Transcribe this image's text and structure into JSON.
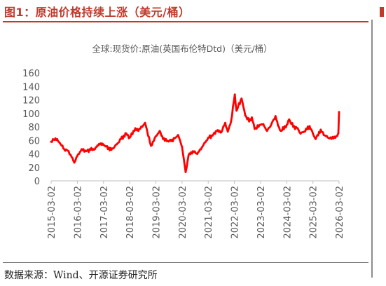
{
  "figure_title": "图1：原油价格持续上涨（美元/桶）",
  "source_note": "数据来源：Wind、开源证券研究所",
  "chart_data": {
    "type": "line",
    "title": "全球:现货价:原油(英国布伦特Dtd)（美元/桶）",
    "xlabel": "",
    "ylabel": "",
    "ylim": [
      0,
      160
    ],
    "yticks": [
      "0",
      "20",
      "40",
      "60",
      "80",
      "100",
      "120",
      "140",
      "160"
    ],
    "xticks": [
      "2015-03-02",
      "2016-03-02",
      "2017-03-02",
      "2018-03-02",
      "2019-03-02",
      "2020-03-02",
      "2021-03-02",
      "2022-03-02",
      "2023-03-02",
      "2024-03-02",
      "2025-03-02",
      "2026-03-02"
    ],
    "grid": false,
    "legend": "none",
    "series": [
      {
        "color": "#ff0000",
        "x": [
          "2015-03-02",
          "2015-05-01",
          "2015-07-01",
          "2015-09-01",
          "2015-11-01",
          "2016-01-20",
          "2016-03-02",
          "2016-05-01",
          "2016-07-01",
          "2016-09-01",
          "2016-11-01",
          "2017-01-01",
          "2017-03-02",
          "2017-06-20",
          "2017-09-01",
          "2017-11-01",
          "2018-01-15",
          "2018-03-02",
          "2018-05-20",
          "2018-07-01",
          "2018-10-03",
          "2018-12-24",
          "2019-03-02",
          "2019-04-25",
          "2019-06-10",
          "2019-08-01",
          "2019-10-01",
          "2019-12-01",
          "2020-01-06",
          "2020-03-02",
          "2020-04-21",
          "2020-06-01",
          "2020-08-01",
          "2020-10-01",
          "2020-12-01",
          "2021-03-02",
          "2021-05-01",
          "2021-07-01",
          "2021-09-01",
          "2021-10-25",
          "2021-12-01",
          "2022-01-15",
          "2022-03-08",
          "2022-04-01",
          "2022-06-10",
          "2022-08-01",
          "2022-09-25",
          "2022-11-01",
          "2022-12-10",
          "2023-03-02",
          "2023-04-10",
          "2023-06-01",
          "2023-08-01",
          "2023-09-27",
          "2023-11-01",
          "2023-12-13",
          "2024-03-02",
          "2024-04-05",
          "2024-06-01",
          "2024-08-01",
          "2024-09-10",
          "2024-11-01",
          "2025-01-15",
          "2025-03-02",
          "2025-04-09",
          "2025-06-19",
          "2025-08-01",
          "2025-10-20",
          "2025-12-15",
          "2026-01-20",
          "2026-02-20",
          "2026-03-02"
        ],
        "y": [
          58,
          63,
          56,
          47,
          44,
          27,
          37,
          47,
          44,
          46,
          47,
          55,
          53,
          46,
          54,
          62,
          70,
          64,
          78,
          74,
          86,
          52,
          66,
          74,
          62,
          59,
          59,
          64,
          68,
          50,
          13,
          38,
          44,
          40,
          49,
          64,
          67,
          74,
          72,
          86,
          73,
          88,
          128,
          104,
          122,
          97,
          88,
          94,
          77,
          83,
          84,
          74,
          84,
          96,
          82,
          74,
          83,
          91,
          80,
          78,
          70,
          73,
          81,
          70,
          62,
          76,
          68,
          63,
          63,
          66,
          71,
          102
        ]
      }
    ]
  }
}
